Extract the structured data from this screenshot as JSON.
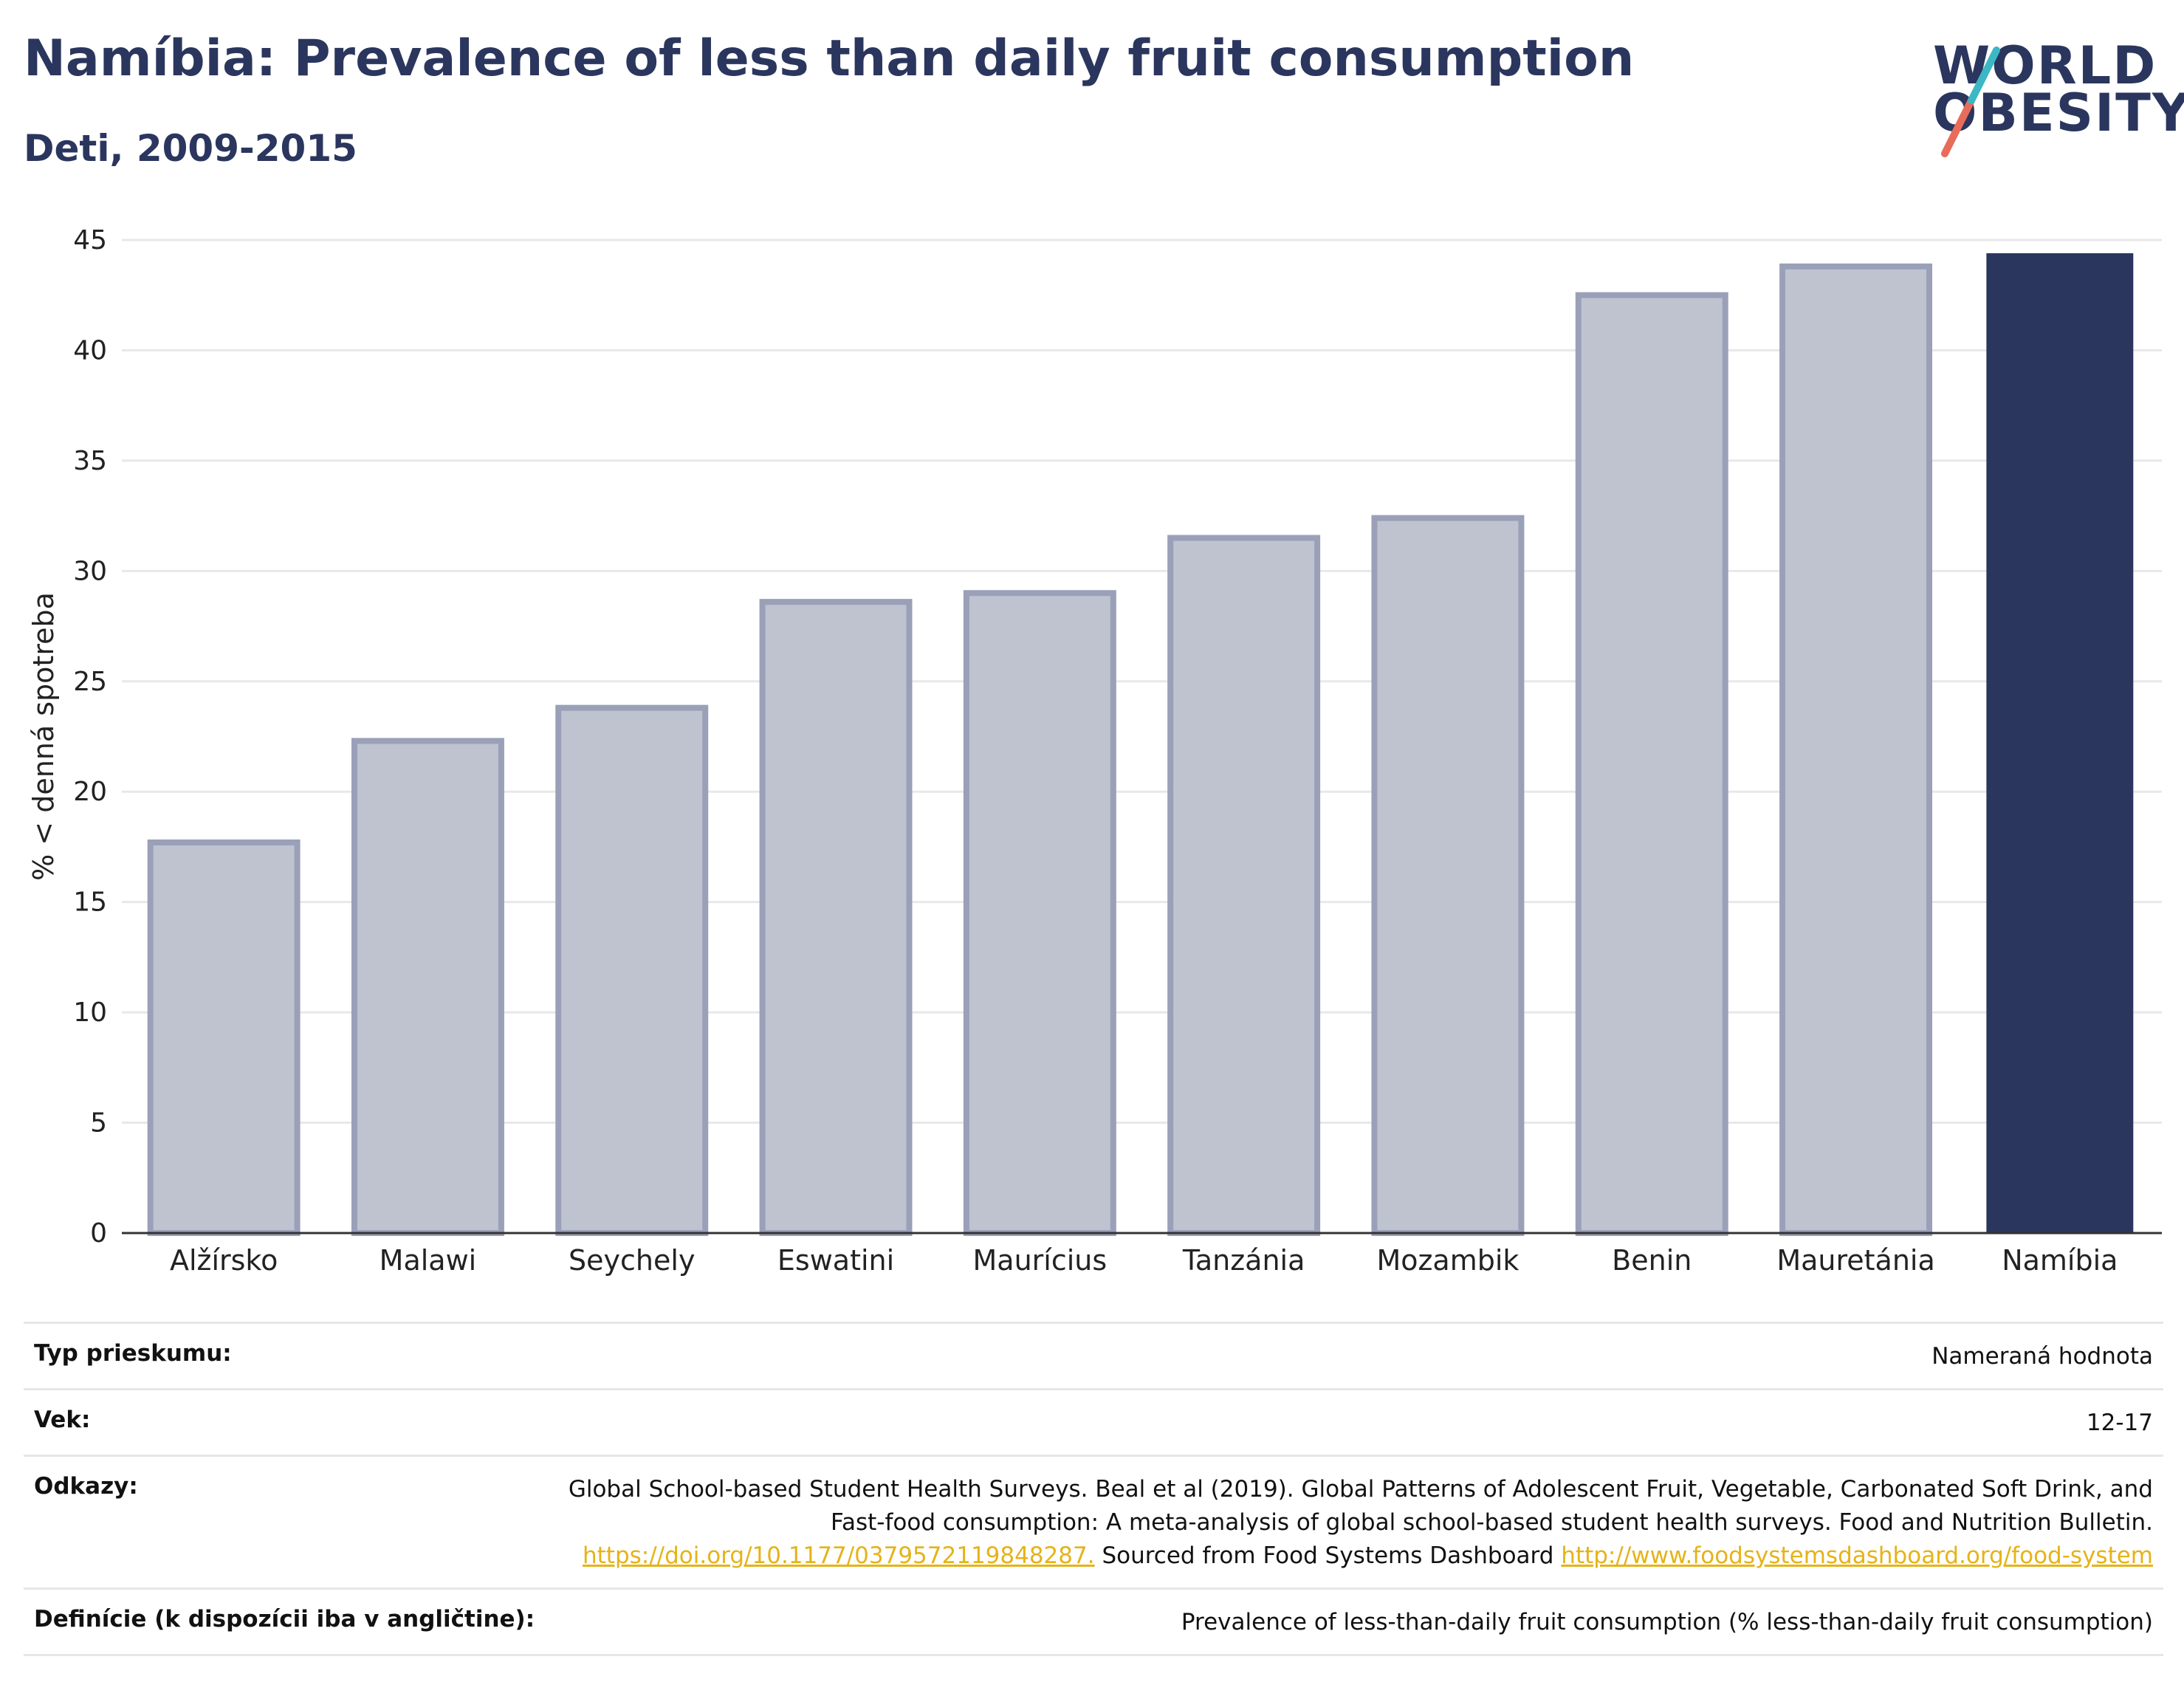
{
  "title": "Namíbia: Prevalence of less than daily fruit consumption",
  "subtitle": "Deti, 2009-2015",
  "logo": {
    "line1": "WORLD",
    "line2": "OBESITY",
    "slash_colors": [
      "#3bb8c3",
      "#e86c5a"
    ]
  },
  "colors": {
    "highlight": "#2b365e",
    "others_fill": "#bfc3d0",
    "others_stroke": "#9aa0b8",
    "text": "#2b365e"
  },
  "chart_data": {
    "type": "bar",
    "categories": [
      "Alžírsko",
      "Malawi",
      "Seychely",
      "Eswatini",
      "Maurícius",
      "Tanzánia",
      "Mozambik",
      "Benin",
      "Mauretánia",
      "Namíbia"
    ],
    "values": [
      17.7,
      22.3,
      23.8,
      28.6,
      29.0,
      31.5,
      32.4,
      42.5,
      43.8,
      44.4
    ],
    "highlight": "Namíbia",
    "ylabel": "% < denná spotreba",
    "xlabel": "",
    "ylim": [
      0,
      45
    ],
    "yticks": [
      0,
      5,
      10,
      15,
      20,
      25,
      30,
      35,
      40,
      45
    ],
    "grid": true
  },
  "info": {
    "survey_label": "Typ prieskumu:",
    "survey_value": "Nameraná hodnota",
    "age_label": "Vek:",
    "age_value": "12-17",
    "refs_label": "Odkazy:",
    "refs_text1": "Global School-based Student Health Surveys. Beal et al (2019). Global Patterns of Adolescent Fruit, Vegetable, Carbonated Soft Drink, and Fast-food consumption: A meta-analysis of global school-based student health surveys. Food and Nutrition Bulletin.",
    "refs_link1": "https://doi.org/10.1177/0379572119848287.",
    "refs_text2": "Sourced from Food Systems Dashboard",
    "refs_link2": "http://www.foodsystemsdashboard.org/food-system",
    "def_label": "Definície (k dispozícii iba v angličtine):",
    "def_value": "Prevalence of less-than-daily fruit consumption (% less-than-daily fruit consumption)"
  }
}
